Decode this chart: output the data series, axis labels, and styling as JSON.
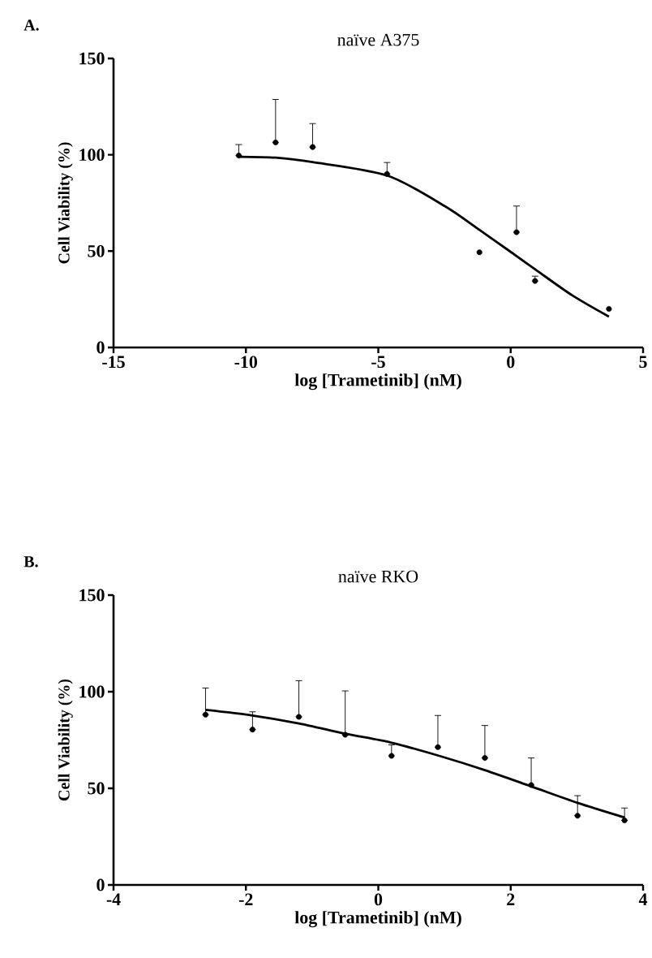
{
  "chart_data": [
    {
      "type": "scatter",
      "title": "naïve A375",
      "xlabel": "log [Trametinib] (nM)",
      "ylabel": "Cell Viability (%)",
      "annotations": [
        "A."
      ],
      "xlim": [
        -15,
        5
      ],
      "xticks": [
        -15,
        -10,
        -5,
        0,
        5
      ],
      "ylim": [
        0,
        150
      ],
      "yticks": [
        0,
        50,
        100,
        150
      ],
      "series": [
        {
          "color": "#000000",
          "marker": "circle",
          "x": [
            -10.27,
            -8.88,
            -7.48,
            -4.67,
            -1.18,
            0.22,
            0.92,
            3.71
          ],
          "values": [
            99.6,
            106.4,
            104,
            90,
            49.4,
            59.8,
            34.5,
            20
          ],
          "errors": [
            [
              99.6,
              105.3
            ],
            [
              106.4,
              128.7
            ],
            [
              104,
              116.2
            ],
            [
              90,
              96
            ],
            null,
            [
              59.8,
              73.4
            ],
            [
              34.5,
              37
            ],
            null
          ]
        },
        {
          "type": "line",
          "color": "#000000",
          "line_style": "solid",
          "marker": "none",
          "x": [
            -10.27,
            -8.88,
            -7.48,
            -4.66,
            -2.47,
            -1.18,
            0,
            0.96,
            2.33,
            3.71
          ],
          "values": [
            99,
            98.5,
            96.2,
            89.2,
            73.2,
            61,
            49.6,
            40.2,
            27,
            16
          ]
        }
      ]
    },
    {
      "type": "scatter",
      "title": "naïve RKO",
      "xlabel": "log [Trametinib] (nM)",
      "ylabel": "Cell Viability (%)",
      "annotations": [
        "B."
      ],
      "xlim": [
        -4,
        4
      ],
      "xticks": [
        -4,
        -2,
        0,
        2,
        4
      ],
      "ylim": [
        0,
        150
      ],
      "yticks": [
        0,
        50,
        100,
        150
      ],
      "series": [
        {
          "color": "#000000",
          "marker": "circle",
          "x": [
            -2.61,
            -1.9,
            -1.2,
            -0.5,
            0.2,
            0.9,
            1.61,
            2.31,
            3.01,
            3.72
          ],
          "values": [
            88.1,
            80.4,
            87,
            77.7,
            66.8,
            71.3,
            65.7,
            51.7,
            35.8,
            33.4
          ],
          "errors": [
            [
              88.1,
              101.9
            ],
            [
              80.4,
              89.6
            ],
            [
              87,
              105.7
            ],
            [
              77.7,
              100.4
            ],
            [
              66.8,
              72.5
            ],
            [
              71.3,
              87.7
            ],
            [
              65.7,
              82.5
            ],
            [
              51.7,
              65.7
            ],
            [
              35.8,
              46.2
            ],
            [
              33.4,
              39.8
            ]
          ]
        },
        {
          "type": "line",
          "color": "#000000",
          "line_style": "solid",
          "marker": "none",
          "x": [
            -2.61,
            -1.9,
            -1.2,
            -0.5,
            0.2,
            0.9,
            1.61,
            2.31,
            3.01,
            3.72
          ],
          "values": [
            90.6,
            87.7,
            83.6,
            78.3,
            73.6,
            67,
            59.4,
            51,
            42.5,
            34.9
          ]
        }
      ]
    }
  ]
}
